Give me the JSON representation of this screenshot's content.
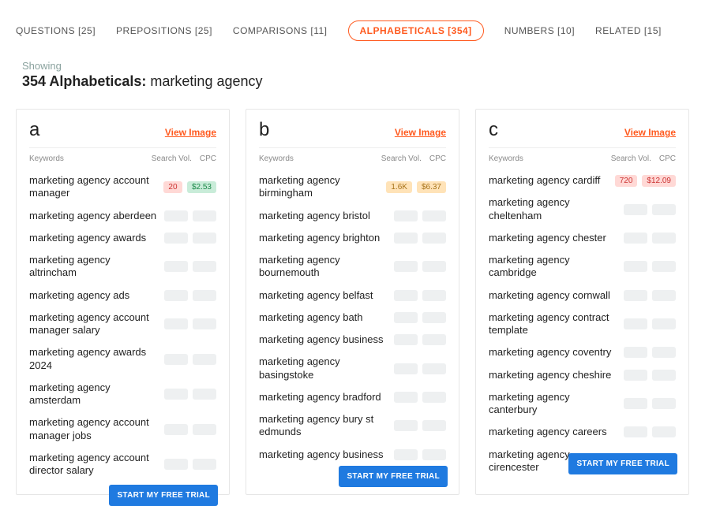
{
  "tabs": [
    {
      "label": "QUESTIONS [25]",
      "active": false
    },
    {
      "label": "PREPOSITIONS [25]",
      "active": false
    },
    {
      "label": "COMPARISONS [11]",
      "active": false
    },
    {
      "label": "ALPHABETICALS [354]",
      "active": true
    },
    {
      "label": "NUMBERS [10]",
      "active": false
    },
    {
      "label": "RELATED [15]",
      "active": false
    }
  ],
  "subheader": {
    "showing": "Showing",
    "count_label": "354 Alphabeticals:",
    "term": "marketing agency"
  },
  "viewImageLabel": "View Image",
  "trialLabel": "START MY FREE TRIAL",
  "columnHeaders": {
    "keywords": "Keywords",
    "vol": "Search Vol.",
    "cpc": "CPC"
  },
  "cards": [
    {
      "letter": "a",
      "trialTop": 476,
      "rows": [
        {
          "kw": "marketing agency account manager",
          "vol": "20",
          "cpc": "$2.53",
          "volClass": "pill-vol-red",
          "cpcClass": "pill-cpc-green"
        },
        {
          "kw": "marketing agency aberdeen",
          "blurred": true
        },
        {
          "kw": "marketing agency awards",
          "blurred": true
        },
        {
          "kw": "marketing agency altrincham",
          "blurred": true
        },
        {
          "kw": "marketing agency ads",
          "blurred": true
        },
        {
          "kw": "marketing agency account manager salary",
          "blurred": true
        },
        {
          "kw": "marketing agency awards 2024",
          "blurred": true
        },
        {
          "kw": "marketing agency amsterdam",
          "blurred": true
        },
        {
          "kw": "marketing agency account manager jobs",
          "blurred": true
        },
        {
          "kw": "marketing agency account director salary",
          "blurred": true
        }
      ]
    },
    {
      "letter": "b",
      "trialTop": 452,
      "rows": [
        {
          "kw": "marketing agency birmingham",
          "vol": "1.6K",
          "cpc": "$6.37",
          "volClass": "pill-vol-amber",
          "cpcClass": "pill-cpc-amber"
        },
        {
          "kw": "marketing agency bristol",
          "blurred": true
        },
        {
          "kw": "marketing agency brighton",
          "blurred": true
        },
        {
          "kw": "marketing agency bournemouth",
          "blurred": true
        },
        {
          "kw": "marketing agency belfast",
          "blurred": true
        },
        {
          "kw": "marketing agency bath",
          "blurred": true
        },
        {
          "kw": "marketing agency business",
          "blurred": true
        },
        {
          "kw": "marketing agency basingstoke",
          "blurred": true
        },
        {
          "kw": "marketing agency bradford",
          "blurred": true
        },
        {
          "kw": "marketing agency bury st edmunds",
          "blurred": true
        },
        {
          "kw": "marketing agency business",
          "blurred": true
        }
      ]
    },
    {
      "letter": "c",
      "trialTop": 436,
      "rows": [
        {
          "kw": "marketing agency cardiff",
          "vol": "720",
          "cpc": "$12.09",
          "volClass": "pill-vol-red",
          "cpcClass": "pill-cpc-red"
        },
        {
          "kw": "marketing agency cheltenham",
          "blurred": true
        },
        {
          "kw": "marketing agency chester",
          "blurred": true
        },
        {
          "kw": "marketing agency cambridge",
          "blurred": true
        },
        {
          "kw": "marketing agency cornwall",
          "blurred": true
        },
        {
          "kw": "marketing agency contract template",
          "blurred": true
        },
        {
          "kw": "marketing agency coventry",
          "blurred": true
        },
        {
          "kw": "marketing agency cheshire",
          "blurred": true
        },
        {
          "kw": "marketing agency canterbury",
          "blurred": true
        },
        {
          "kw": "marketing agency careers",
          "blurred": true
        },
        {
          "kw": "marketing agency cirencester",
          "blurred": true
        }
      ]
    }
  ]
}
